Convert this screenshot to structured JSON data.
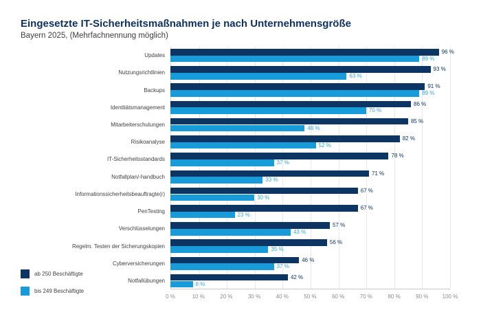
{
  "header": {
    "title": "Eingesetzte IT-Sicherheitsmaßnahmen je nach Unternehmensgröße",
    "subtitle": "Bayern 2025, (Mehrfachnennung möglich)"
  },
  "colors": {
    "title_text": "#0d3160",
    "series_large": "#0d3564",
    "series_small": "#189cd9",
    "grid": "#e8e8e8",
    "axis_text": "#8c8c8c",
    "category_text": "#404040"
  },
  "chart_data": {
    "type": "bar",
    "orientation": "horizontal",
    "title": "Eingesetzte IT-Sicherheitsmaßnahmen je nach Unternehmensgröße",
    "subtitle": "Bayern 2025, (Mehrfachnennung möglich)",
    "categories": [
      "Updates",
      "Nutzungsrichtlinien",
      "Backups",
      "Identitätsmanagement",
      "Mitarbeiterschulungen",
      "Risikoanalyse",
      "IT-Sicherheitsstandards",
      "Notfallplan/-handbuch",
      "Informationssicherheitsbeauftragte(r)",
      "PenTesting",
      "Verschlüsselungen",
      "Regelm. Testen der Sicherungskopien",
      "Cyberversicherungen",
      "Notfallübungen"
    ],
    "series": [
      {
        "name": "ab 250 Beschäftigte",
        "color": "#0d3564",
        "values": [
          96,
          93,
          91,
          86,
          85,
          82,
          78,
          71,
          67,
          67,
          57,
          56,
          46,
          42
        ]
      },
      {
        "name": "bis 249 Beschäftigte",
        "color": "#189cd9",
        "values": [
          89,
          63,
          89,
          70,
          48,
          52,
          37,
          33,
          30,
          23,
          43,
          35,
          37,
          8
        ]
      }
    ],
    "value_suffix": " %",
    "xlim": [
      0,
      100
    ],
    "x_ticks": [
      "0 %",
      "10 %",
      "20 %",
      "30 %",
      "40 %",
      "50 %",
      "60 %",
      "70 %",
      "80 %",
      "90 %",
      "100 %"
    ],
    "grid": true,
    "legend_position": "bottom-left"
  }
}
